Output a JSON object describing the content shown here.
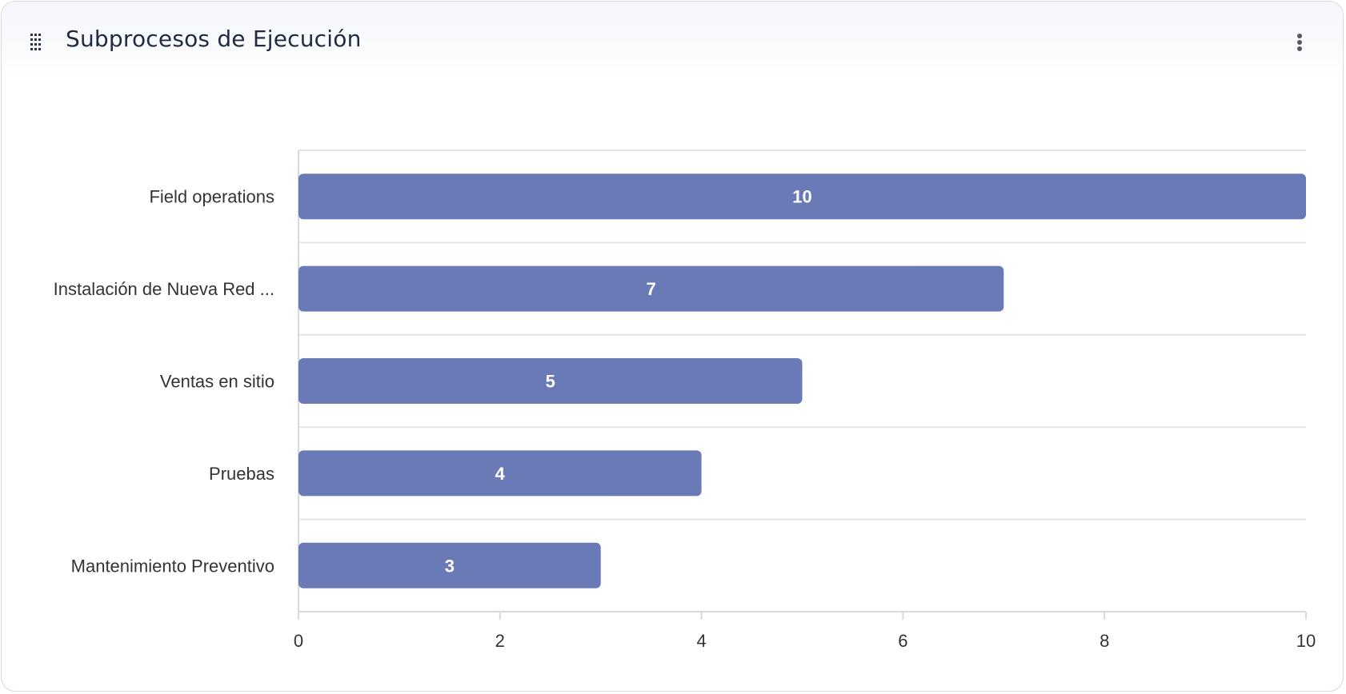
{
  "header": {
    "title": "Subprocesos de Ejecución",
    "drag_icon": "drag-handle-grid-icon",
    "menu_icon": "more-vertical-icon"
  },
  "colors": {
    "bar": "#6a7ab6",
    "grid": "#e3e5ea",
    "axis": "#d6d9de",
    "title": "#1f2a44"
  },
  "chart_data": {
    "type": "bar",
    "orientation": "horizontal",
    "categories": [
      "Field operations",
      "Instalación de Nueva Red ...",
      "Ventas en sitio",
      "Pruebas",
      "Mantenimiento Preventivo"
    ],
    "values": [
      10,
      7,
      5,
      4,
      3
    ],
    "xlim": [
      0,
      10
    ],
    "xticks": [
      0,
      2,
      4,
      6,
      8,
      10
    ],
    "data_labels": true,
    "grid": "horizontal",
    "legend": "none"
  }
}
